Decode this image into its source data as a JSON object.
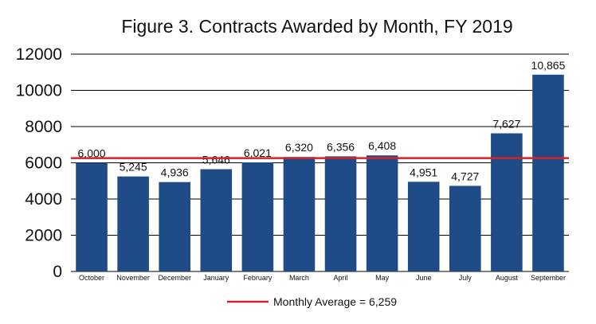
{
  "chart_data": {
    "type": "bar",
    "title": "Figure 3. Contracts Awarded by Month, FY 2019",
    "xlabel": "",
    "ylabel": "",
    "categories": [
      "October",
      "November",
      "December",
      "January",
      "February",
      "March",
      "April",
      "May",
      "June",
      "July",
      "August",
      "September"
    ],
    "values": [
      6000,
      5245,
      4936,
      5646,
      6021,
      6320,
      6356,
      6408,
      4951,
      4727,
      7627,
      10865
    ],
    "data_labels": [
      "6,000",
      "5,245",
      "4,936",
      "5,646",
      "6,021",
      "6,320",
      "6,356",
      "6,408",
      "4,951",
      "4,727",
      "7,627",
      "10,865"
    ],
    "ylim": [
      0,
      12000
    ],
    "yticks": [
      0,
      2000,
      4000,
      6000,
      8000,
      10000,
      12000
    ],
    "ytick_labels": [
      "0",
      "2000",
      "4000",
      "6000",
      "8000",
      "10000",
      "12000"
    ],
    "grid": "horizontal",
    "reference_line": {
      "value": 6259,
      "label": "Monthly Average = 6,259"
    },
    "legend": {
      "position": "bottom-center",
      "entries": [
        "Monthly Average = 6,259"
      ]
    },
    "colors": {
      "bar": "#1f4b87",
      "reference_line": "#d1232a",
      "grid": "#000000"
    }
  }
}
